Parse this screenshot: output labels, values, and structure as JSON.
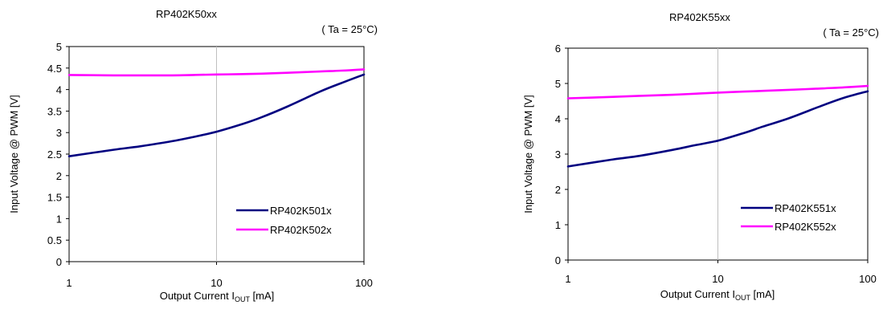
{
  "chart_data": [
    {
      "type": "line",
      "title": "RP402K50xx",
      "subtitle": "( Ta = 25°C)",
      "xlabel": "Output Current I",
      "xlabel_sub": "OUT",
      "xlabel_unit": " [mA]",
      "ylabel": "Input Voltage @ PWM [V]",
      "xscale": "log",
      "xlim": [
        1,
        100
      ],
      "ylim": [
        0,
        5
      ],
      "xticks": [
        1,
        10,
        100
      ],
      "xtick_labels": [
        "1",
        "10",
        "100"
      ],
      "yticks": [
        0,
        0.5,
        1,
        1.5,
        2,
        2.5,
        3,
        3.5,
        4,
        4.5,
        5
      ],
      "ytick_labels": [
        "0",
        "0.5",
        "1",
        "1.5",
        "2",
        "2.5",
        "3",
        "3.5",
        "4",
        "4.5",
        "5"
      ],
      "grid": true,
      "legend_position": "bottom-right",
      "series": [
        {
          "name": "RP402K501x",
          "color": "#000080",
          "x": [
            1,
            2,
            3,
            5,
            7,
            10,
            15,
            20,
            30,
            50,
            70,
            100
          ],
          "y": [
            2.45,
            2.6,
            2.68,
            2.8,
            2.9,
            3.02,
            3.2,
            3.35,
            3.6,
            3.95,
            4.15,
            4.35
          ]
        },
        {
          "name": "RP402K502x",
          "color": "#ff00ff",
          "x": [
            1,
            2,
            3,
            5,
            7,
            10,
            15,
            20,
            30,
            50,
            70,
            100
          ],
          "y": [
            4.34,
            4.33,
            4.33,
            4.33,
            4.34,
            4.35,
            4.36,
            4.37,
            4.39,
            4.42,
            4.44,
            4.47
          ]
        }
      ]
    },
    {
      "type": "line",
      "title": "RP402K55xx",
      "subtitle": "( Ta = 25°C)",
      "xlabel": "Output Current I",
      "xlabel_sub": "OUT",
      "xlabel_unit": " [mA]",
      "ylabel": "Input Voltage @ PWM [V]",
      "xscale": "log",
      "xlim": [
        1,
        100
      ],
      "ylim": [
        0,
        6
      ],
      "xticks": [
        1,
        10,
        100
      ],
      "xtick_labels": [
        "1",
        "10",
        "100"
      ],
      "yticks": [
        0,
        1,
        2,
        3,
        4,
        5,
        6
      ],
      "ytick_labels": [
        "0",
        "1",
        "2",
        "3",
        "4",
        "5",
        "6"
      ],
      "grid": true,
      "legend_position": "bottom-right",
      "series": [
        {
          "name": "RP402K551x",
          "color": "#000080",
          "x": [
            1,
            2,
            3,
            5,
            7,
            10,
            15,
            20,
            30,
            50,
            70,
            100
          ],
          "y": [
            2.65,
            2.85,
            2.95,
            3.12,
            3.25,
            3.38,
            3.6,
            3.78,
            4.02,
            4.38,
            4.6,
            4.78
          ]
        },
        {
          "name": "RP402K552x",
          "color": "#ff00ff",
          "x": [
            1,
            2,
            3,
            5,
            7,
            10,
            15,
            20,
            30,
            50,
            70,
            100
          ],
          "y": [
            4.58,
            4.62,
            4.65,
            4.68,
            4.71,
            4.74,
            4.77,
            4.79,
            4.82,
            4.86,
            4.89,
            4.93
          ]
        }
      ]
    }
  ]
}
